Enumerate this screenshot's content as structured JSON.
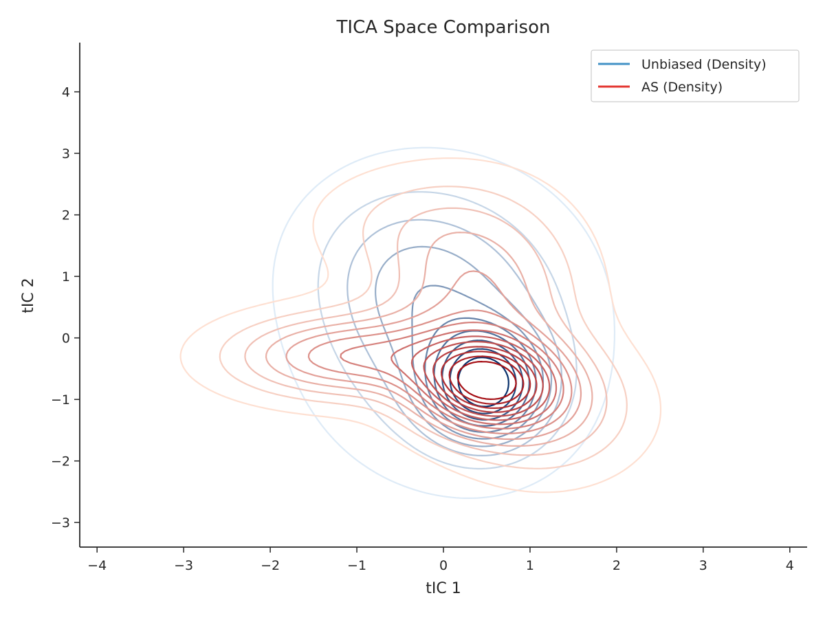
{
  "chart_data": {
    "type": "contour",
    "title": "TICA Space Comparison",
    "xlabel": "tIC 1",
    "ylabel": "tIC 2",
    "xlim": [
      -4.2,
      4.2
    ],
    "ylim": [
      -3.4,
      4.8
    ],
    "xticks": [
      -4,
      -3,
      -2,
      -1,
      0,
      1,
      2,
      3,
      4
    ],
    "yticks": [
      -3,
      -2,
      -1,
      0,
      1,
      2,
      3,
      4
    ],
    "xtick_labels": [
      "−4",
      "−3",
      "−2",
      "−1",
      "0",
      "1",
      "2",
      "3",
      "4"
    ],
    "ytick_labels": [
      "−3",
      "−2",
      "−1",
      "0",
      "1",
      "2",
      "3",
      "4"
    ],
    "legend_position": "top-right",
    "grid": false,
    "series": [
      {
        "name": "Unbiased (Density)",
        "color": "#4292c6",
        "palette": [
          "#deebf7",
          "#08306b"
        ],
        "levels": 10,
        "components": [
          {
            "cx": 0.5,
            "cy": -0.8,
            "sx": 0.45,
            "sy": 0.6,
            "w": 1.0
          },
          {
            "cx": 0.1,
            "cy": 0.2,
            "sx": 0.9,
            "sy": 1.3,
            "w": 0.45
          },
          {
            "cx": -0.6,
            "cy": 1.2,
            "sx": 0.7,
            "sy": 0.9,
            "w": 0.18
          }
        ]
      },
      {
        "name": "AS (Density)",
        "color": "#e3342f",
        "palette": [
          "#fee0d2",
          "#a50f15"
        ],
        "levels": 14,
        "components": [
          {
            "cx": 0.5,
            "cy": -0.75,
            "sx": 0.55,
            "sy": 0.5,
            "w": 1.0
          },
          {
            "cx": -1.1,
            "cy": -0.3,
            "sx": 0.9,
            "sy": 0.45,
            "w": 0.55
          },
          {
            "cx": 0.4,
            "cy": 0.7,
            "sx": 0.75,
            "sy": 1.0,
            "w": 0.4
          },
          {
            "cx": -0.4,
            "cy": 1.9,
            "sx": 0.8,
            "sy": 0.6,
            "w": 0.12
          },
          {
            "cx": 1.2,
            "cy": -1.2,
            "sx": 0.7,
            "sy": 0.7,
            "w": 0.3
          }
        ]
      }
    ]
  }
}
